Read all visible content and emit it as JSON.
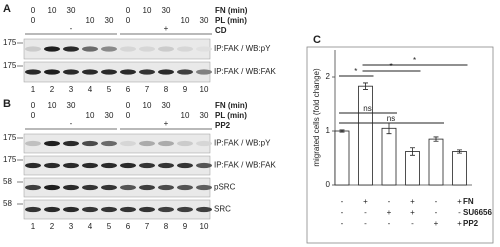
{
  "panel_a": {
    "label": "A",
    "conditions": [
      {
        "name": "FN (min)",
        "lanes": [
          "0",
          "10",
          "30",
          null,
          null,
          "0",
          "10",
          "30",
          null,
          null
        ]
      },
      {
        "name": "PL (min)",
        "lanes": [
          "0",
          null,
          null,
          "10",
          "30",
          "0",
          null,
          null,
          "10",
          "30"
        ]
      }
    ],
    "treatment": {
      "name": "CD",
      "groups": [
        "-",
        "+"
      ]
    },
    "blots": [
      {
        "label": "IP:FAK / WB:pY",
        "marker": "175"
      },
      {
        "label": "IP:FAK / WB:FAK",
        "marker": "175"
      }
    ],
    "lanes": [
      1,
      2,
      3,
      4,
      5,
      6,
      7,
      8,
      9,
      10
    ]
  },
  "panel_b": {
    "label": "B",
    "conditions": [
      {
        "name": "FN (min)",
        "lanes": [
          "0",
          "10",
          "30",
          null,
          null,
          "0",
          "10",
          "30",
          null,
          null
        ]
      },
      {
        "name": "PL (min)",
        "lanes": [
          "0",
          null,
          null,
          "10",
          "30",
          "0",
          null,
          null,
          "10",
          "30"
        ]
      }
    ],
    "treatment": {
      "name": "PP2",
      "groups": [
        "-",
        "+"
      ]
    },
    "blots": [
      {
        "label": "IP:FAK / WB:pY",
        "marker": "175"
      },
      {
        "label": "IP:FAK / WB:FAK",
        "marker": "175"
      },
      {
        "label": "pSRC",
        "marker": "58"
      },
      {
        "label": "SRC",
        "marker": "58"
      }
    ],
    "lanes": [
      1,
      2,
      3,
      4,
      5,
      6,
      7,
      8,
      9,
      10
    ]
  },
  "chart_data": {
    "type": "bar",
    "panel_label": "C",
    "y_label": "migrated cells (fold change)",
    "values": [
      1.0,
      1.83,
      1.05,
      0.62,
      0.85,
      0.62
    ],
    "errors": [
      0.02,
      0.06,
      0.1,
      0.07,
      0.04,
      0.03
    ],
    "color": "#ffffff",
    "ylim": [
      0,
      2.5
    ],
    "yticks": [
      0,
      1,
      2
    ],
    "significance": [
      "*",
      "*",
      "*",
      "ns",
      "ns"
    ],
    "treatments": [
      {
        "name": "FN",
        "signs": [
          "-",
          "+",
          "-",
          "+",
          "-",
          "+"
        ]
      },
      {
        "name": "SU6656",
        "signs": [
          "-",
          "-",
          "+",
          "+",
          "-",
          "-"
        ]
      },
      {
        "name": "PP2",
        "signs": [
          "-",
          "-",
          "-",
          "-",
          "+",
          "+"
        ]
      }
    ]
  }
}
